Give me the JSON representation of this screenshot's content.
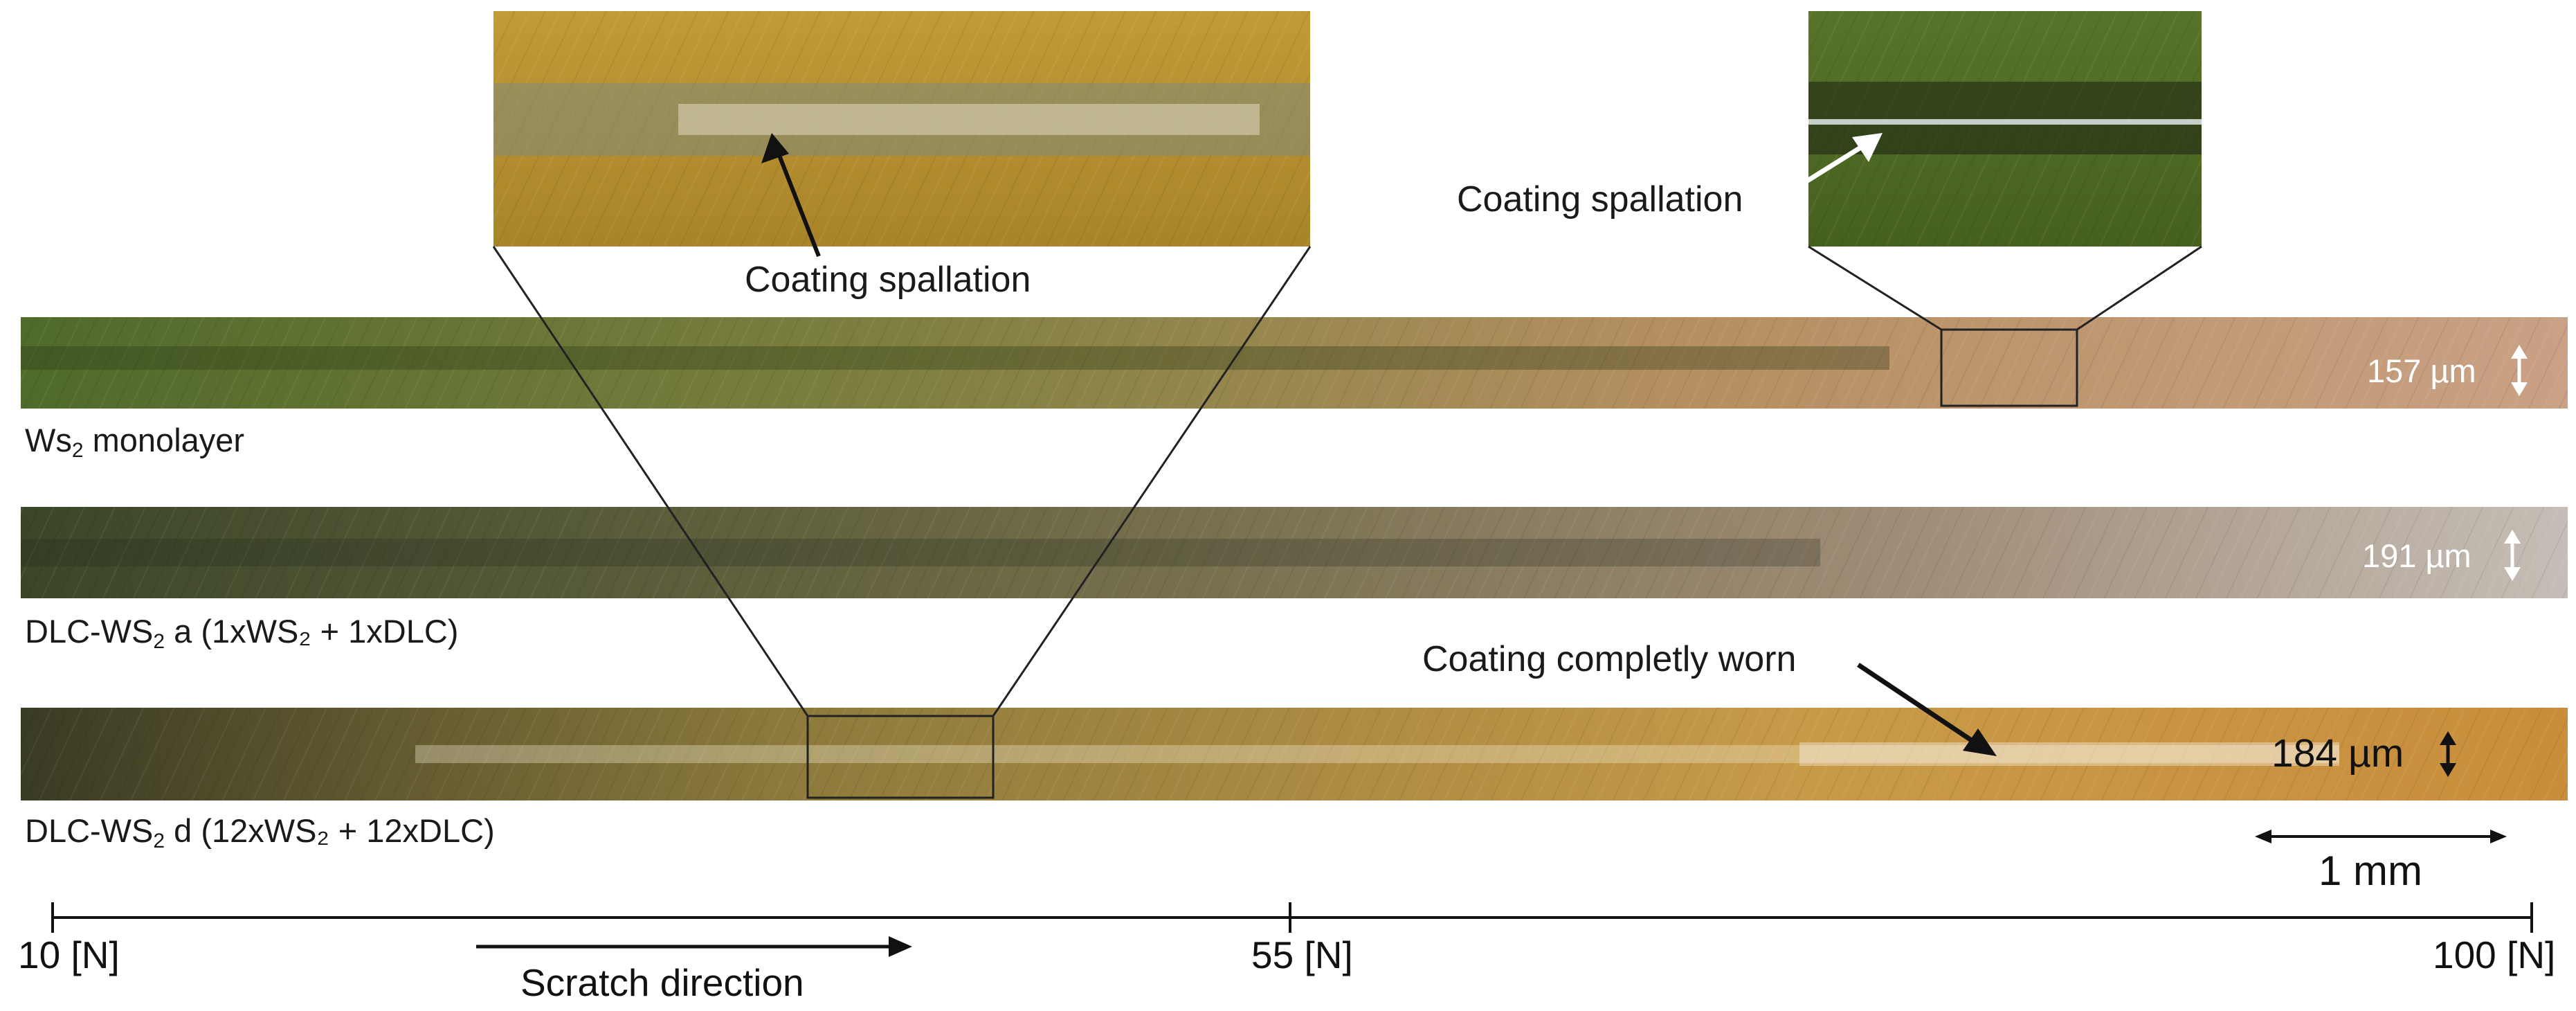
{
  "callouts": {
    "spallation_left": "Coating spallation",
    "spallation_right": "Coating spallation",
    "worn": "Coating completly worn"
  },
  "tracks": [
    {
      "label_main": "Ws",
      "label_sub": "2",
      "label_rest": " monolayer",
      "width_value": "157 µm"
    },
    {
      "label_main": "DLC-WS",
      "label_sub": "2",
      "label_rest": " a (1xWS₂ + 1xDLC)",
      "width_value": "191 µm"
    },
    {
      "label_main": "DLC-WS",
      "label_sub": "2",
      "label_rest": " d (12xWS₂ + 12xDLC)",
      "width_value": "184 µm"
    }
  ],
  "scale_bar": {
    "label": "1 mm"
  },
  "load_axis": {
    "ticks": [
      "10 [N]",
      "55 [N]",
      "100 [N]"
    ],
    "direction_label": "Scratch direction"
  },
  "colors": {
    "track1_start": "#4f6a2a",
    "track1_end": "#c89a78",
    "track2_start": "#3e4a28",
    "track2_end": "#b6aca0",
    "track3_start": "#3c3a22",
    "track3_end": "#c98e3c",
    "zoom_left": "#b8902a",
    "zoom_right": "#4f6a22"
  }
}
